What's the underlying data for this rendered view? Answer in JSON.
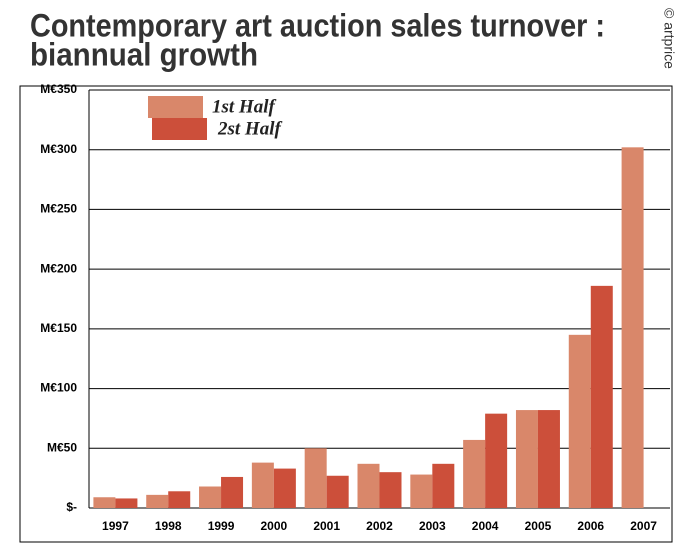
{
  "chart_data": {
    "type": "bar",
    "title": [
      "Contemporary art auction sales turnover :",
      "biannual growth"
    ],
    "source": "© artprice",
    "categories": [
      "1997",
      "1998",
      "1999",
      "2000",
      "2001",
      "2002",
      "2003",
      "2004",
      "2005",
      "2006",
      "2007"
    ],
    "series": [
      {
        "name": "1st Half",
        "color": "#d9876a",
        "values": [
          9,
          11,
          18,
          38,
          50,
          37,
          28,
          57,
          82,
          145,
          302
        ]
      },
      {
        "name": "2st Half",
        "color": "#cc4f3a",
        "values": [
          8,
          14,
          26,
          33,
          27,
          30,
          37,
          79,
          82,
          186,
          null
        ]
      }
    ],
    "ylim": [
      0,
      350
    ],
    "yticks": [
      {
        "value": 0,
        "label": "$-"
      },
      {
        "value": 50,
        "label": "M€50"
      },
      {
        "value": 100,
        "label": "M€100"
      },
      {
        "value": 150,
        "label": "M€150"
      },
      {
        "value": 200,
        "label": "M€200"
      },
      {
        "value": 250,
        "label": "M€250"
      },
      {
        "value": 300,
        "label": "M€300"
      },
      {
        "value": 350,
        "label": "M€350"
      }
    ],
    "grid": true
  }
}
